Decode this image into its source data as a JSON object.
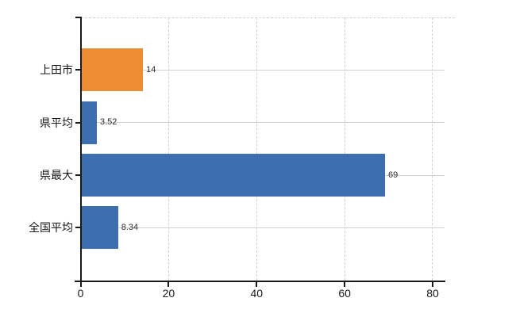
{
  "chart_data": {
    "type": "bar",
    "orientation": "horizontal",
    "title": "",
    "xlabel": "",
    "ylabel": "",
    "categories": [
      "上田市",
      "県平均",
      "県最大",
      "全国平均"
    ],
    "values": [
      14,
      3.52,
      69,
      8.34
    ],
    "value_labels": [
      "14",
      "3.52",
      "69",
      "8.34"
    ],
    "bar_colors": [
      "#ed8d33",
      "#3d6fae",
      "#3d6fae",
      "#3d6fae"
    ],
    "x_ticks": [
      "0",
      "20",
      "40",
      "60",
      "80"
    ],
    "x_tick_values": [
      0,
      20,
      40,
      60,
      80
    ],
    "xlim": [
      0,
      80
    ],
    "grid": {
      "horizontal": "solid",
      "vertical": "dashed",
      "top_border": "dashed"
    },
    "legend": "none"
  },
  "colors": {
    "bar_orange": "#ed8d33",
    "bar_blue": "#3d6fae",
    "axis": "#1a1a1a",
    "grid_horizontal": "#ccd5cc",
    "grid_vertical": "#d5cdd5",
    "value_label_text": "#2e2e2e",
    "tick_label_text": "#1a1a1a",
    "background": "#ffffff"
  }
}
